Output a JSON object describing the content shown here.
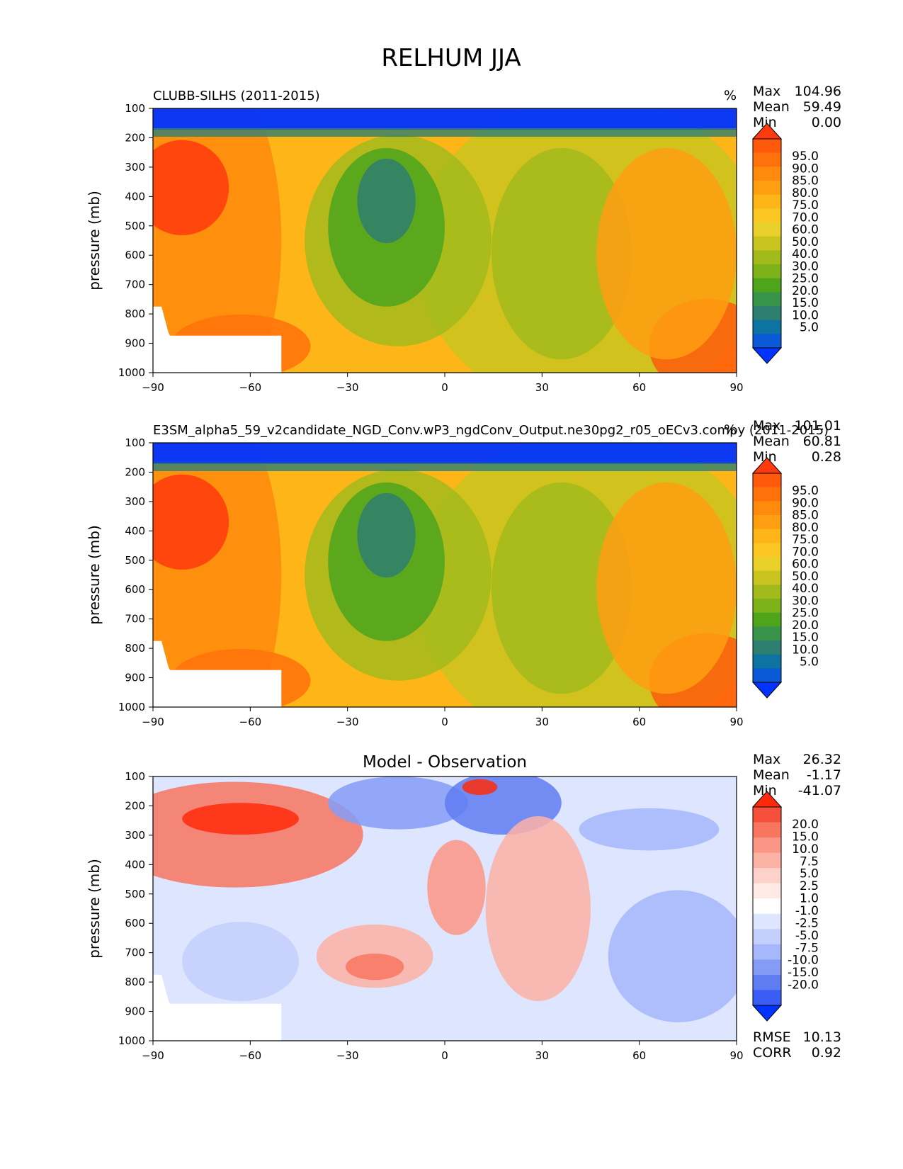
{
  "figure_title": "RELHUM JJA",
  "chart_data": [
    {
      "type": "heatmap",
      "title": "CLUBB-SILHS (2011-2015)",
      "units": "%",
      "xlabel": "",
      "ylabel": "pressure (mb)",
      "xlim": [
        -90,
        90
      ],
      "ylim": [
        1000,
        100
      ],
      "xticks": [
        "−90",
        "−60",
        "−30",
        "0",
        "30",
        "60",
        "90"
      ],
      "yticks": [
        "100",
        "200",
        "300",
        "400",
        "500",
        "600",
        "700",
        "800",
        "900",
        "1000"
      ],
      "stats": [
        {
          "label": "Max",
          "value": "104.96"
        },
        {
          "label": "Mean",
          "value": "59.49"
        },
        {
          "label": "Min",
          "value": "0.00"
        }
      ],
      "colorbar_labels": [
        "95.0",
        "90.0",
        "85.0",
        "80.0",
        "75.0",
        "70.0",
        "60.0",
        "50.0",
        "40.0",
        "30.0",
        "25.0",
        "20.0",
        "15.0",
        "10.0",
        "5.0"
      ],
      "colorbar_colors": [
        "#ff3a0d",
        "#ff5a0c",
        "#ff720b",
        "#ff8a0d",
        "#ff9e10",
        "#feb518",
        "#fbc522",
        "#e9d02a",
        "#c9c420",
        "#a3ba1c",
        "#7db21a",
        "#4ea51c",
        "#37944a",
        "#2e7f70",
        "#0d73a0",
        "#0a5ad8",
        "#0033ff"
      ]
    },
    {
      "type": "heatmap",
      "title": "E3SM_alpha5_59_v2candidate_NGD_Conv.wP3_ngdConv_Output.ne30pg2_r05_oECv3.compy (2011-2015)",
      "units": "%",
      "xlabel": "",
      "ylabel": "pressure (mb)",
      "xlim": [
        -90,
        90
      ],
      "ylim": [
        1000,
        100
      ],
      "xticks": [
        "−90",
        "−60",
        "−30",
        "0",
        "30",
        "60",
        "90"
      ],
      "yticks": [
        "100",
        "200",
        "300",
        "400",
        "500",
        "600",
        "700",
        "800",
        "900",
        "1000"
      ],
      "stats": [
        {
          "label": "Max",
          "value": "101.01"
        },
        {
          "label": "Mean",
          "value": "60.81"
        },
        {
          "label": "Min",
          "value": "0.28"
        }
      ],
      "colorbar_labels": [
        "95.0",
        "90.0",
        "85.0",
        "80.0",
        "75.0",
        "70.0",
        "60.0",
        "50.0",
        "40.0",
        "30.0",
        "25.0",
        "20.0",
        "15.0",
        "10.0",
        "5.0"
      ],
      "colorbar_colors": [
        "#ff3a0d",
        "#ff5a0c",
        "#ff720b",
        "#ff8a0d",
        "#ff9e10",
        "#feb518",
        "#fbc522",
        "#e9d02a",
        "#c9c420",
        "#a3ba1c",
        "#7db21a",
        "#4ea51c",
        "#37944a",
        "#2e7f70",
        "#0d73a0",
        "#0a5ad8",
        "#0033ff"
      ]
    },
    {
      "type": "heatmap",
      "title": "Model - Observation",
      "units": "",
      "xlabel": "",
      "ylabel": "pressure (mb)",
      "xlim": [
        -90,
        90
      ],
      "ylim": [
        1000,
        100
      ],
      "xticks": [
        "−90",
        "−60",
        "−30",
        "0",
        "30",
        "60",
        "90"
      ],
      "yticks": [
        "100",
        "200",
        "300",
        "400",
        "500",
        "600",
        "700",
        "800",
        "900",
        "1000"
      ],
      "stats": [
        {
          "label": "Max",
          "value": "26.32"
        },
        {
          "label": "Mean",
          "value": "-1.17"
        },
        {
          "label": "Min",
          "value": "-41.07"
        }
      ],
      "extra_stats": [
        {
          "label": "RMSE",
          "value": "10.13"
        },
        {
          "label": "CORR",
          "value": "0.92"
        }
      ],
      "colorbar_labels": [
        "20.0",
        "15.0",
        "10.0",
        "7.5",
        "5.0",
        "2.5",
        "1.0",
        "-1.0",
        "-2.5",
        "-5.0",
        "-7.5",
        "-10.0",
        "-15.0",
        "-20.0"
      ],
      "colorbar_colors": [
        "#ff2a0a",
        "#f4503c",
        "#f87560",
        "#fb9585",
        "#fdb2a6",
        "#fed2cb",
        "#ffeae6",
        "#ffffff",
        "#dde5ff",
        "#c3cffd",
        "#a6b7fb",
        "#859cf7",
        "#5f7cf2",
        "#3a5df5",
        "#0033ff"
      ]
    }
  ]
}
